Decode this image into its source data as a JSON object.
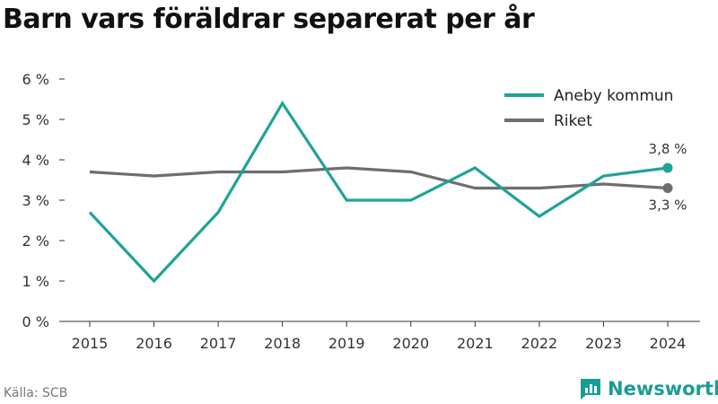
{
  "title": "Barn vars föräldrar separerat per år",
  "source": "Källa: SCB",
  "brand": {
    "name": "Newsworthy",
    "color": "#1a9c93"
  },
  "chart_data": {
    "type": "line",
    "categories": [
      "2015",
      "2016",
      "2017",
      "2018",
      "2019",
      "2020",
      "2021",
      "2022",
      "2023",
      "2024"
    ],
    "series": [
      {
        "name": "Aneby kommun",
        "color": "#1fa396",
        "values": [
          2.7,
          1.0,
          2.7,
          5.4,
          3.0,
          3.0,
          3.8,
          2.6,
          3.6,
          3.8
        ]
      },
      {
        "name": "Riket",
        "color": "#6e6d72",
        "values": [
          3.7,
          3.6,
          3.7,
          3.7,
          3.8,
          3.7,
          3.3,
          3.3,
          3.4,
          3.3
        ]
      }
    ],
    "ylim": [
      0,
      6
    ],
    "yticks": [
      "0 %",
      "1 %",
      "2 %",
      "3 %",
      "4 %",
      "5 %",
      "6 %"
    ],
    "end_labels": [
      "3,8 %",
      "3,3 %"
    ],
    "legend": "top-right",
    "grid": false
  }
}
